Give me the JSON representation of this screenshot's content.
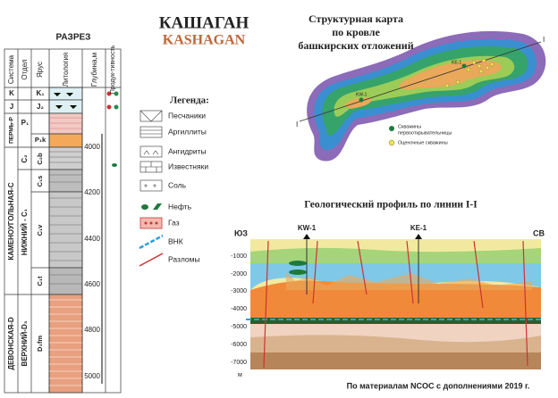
{
  "header": {
    "title_ru": "КАШАГАН",
    "title_en": "KASHAGAN"
  },
  "section": {
    "title": "РАЗРЕЗ",
    "columns": [
      "Система",
      "Отдел",
      "Ярус",
      "Литология",
      "Глубина,м",
      "Продук-тивность"
    ],
    "systems": [
      "K",
      "J",
      "ПЕРМЬ-P",
      "КАМЕНОУГОЛЬНАЯ-C",
      "ДЕВОНСКАЯ-D"
    ],
    "series": [
      "K₁",
      "J₂",
      "P₁",
      "C₂",
      "НИЖНИЙ - C₁",
      "ВЕРХНИЙ-D₃"
    ],
    "stages": [
      "P₁k",
      "C₂b",
      "C₁s",
      "C₁v",
      "C₁t",
      "D₃fm"
    ],
    "depth_labels": [
      "4000",
      "4200",
      "4400",
      "4600",
      "4800",
      "5000"
    ]
  },
  "legend": {
    "title": "Легенда:",
    "items": [
      "Песчаники",
      "Аргиллиты",
      "Ангидриты",
      "Известняки",
      "Соль",
      "Нефть",
      "Газ",
      "ВНК",
      "Разломы"
    ]
  },
  "map": {
    "title": [
      "Структурная карта",
      "по кровле",
      "башкирских отложений"
    ],
    "wells": [
      "KW-1",
      "KE-1"
    ],
    "line_label": "I",
    "legend": [
      [
        "Скважины",
        "первооткрывательницы"
      ],
      [
        "Оценочные скважины"
      ]
    ]
  },
  "profile": {
    "title": "Геологический профиль по линии I-I",
    "left": "ЮЗ",
    "right": "СВ",
    "wells": [
      "KW-1",
      "KE-1"
    ],
    "depths": [
      "-1000",
      "-2000",
      "-3000",
      "-4000",
      "-5000",
      "-6000",
      "-7000"
    ],
    "unit": "м"
  },
  "footer": {
    "source": "По материалам NCOC с дополнениями 2019 г."
  }
}
